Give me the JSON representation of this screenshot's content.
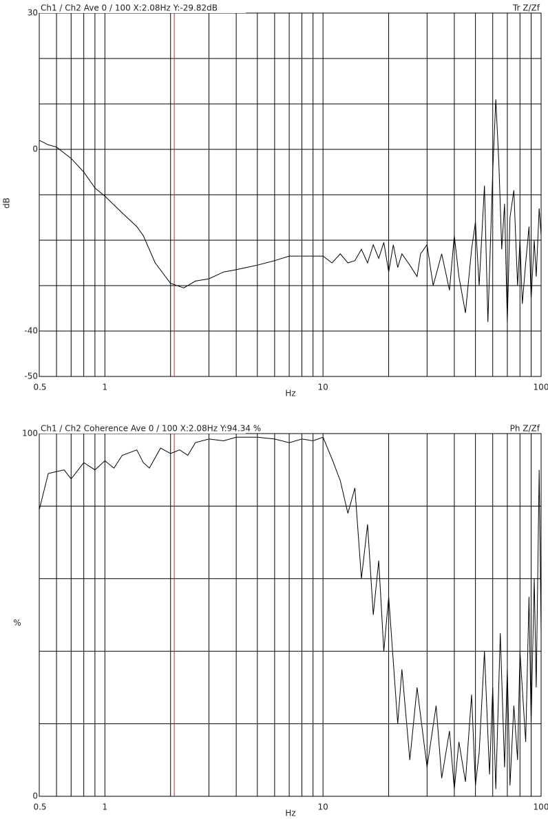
{
  "chart_data": [
    {
      "type": "line",
      "title": "Ch1 / Ch2  Ave 0 / 100  X:2.08Hz  Y:-29.82dB",
      "subtitle": "Tr Z/Zf",
      "x_label": "Hz",
      "y_label": "dB",
      "xscale": "log",
      "grid": true,
      "xlim": [
        0.5,
        100
      ],
      "xticks": [
        0.5,
        1,
        10,
        100
      ],
      "xgrid": [
        0.6,
        0.7,
        0.8,
        0.9,
        1,
        2,
        3,
        4,
        5,
        6,
        7,
        8,
        9,
        10,
        20,
        30,
        40,
        50,
        60,
        70,
        80,
        90
      ],
      "ylim": [
        -50,
        30
      ],
      "yticks": [
        30,
        0,
        -40,
        -50
      ],
      "ygrid": [
        20,
        10,
        0,
        -10,
        -20,
        -30,
        -40
      ],
      "cursor_x": 2.08,
      "cursor_color": "#d02020",
      "series": [
        {
          "color": "#000000",
          "x": [
            0.5,
            0.55,
            0.6,
            0.7,
            0.8,
            0.9,
            1,
            1.2,
            1.4,
            1.5,
            1.7,
            2,
            2.3,
            2.6,
            3,
            3.5,
            4,
            5,
            6,
            7,
            8,
            10,
            11,
            12,
            13,
            14,
            15,
            16,
            17,
            18,
            19,
            20,
            21,
            22,
            23,
            25,
            27,
            28,
            30,
            32,
            35,
            38,
            40,
            42,
            45,
            48,
            50,
            52,
            55,
            57,
            60,
            62,
            64,
            66,
            68,
            70,
            72,
            75,
            78,
            80,
            82,
            85,
            88,
            90,
            93,
            95,
            98,
            100
          ],
          "values": [
            2,
            1,
            0.5,
            -2,
            -5,
            -8.5,
            -10.3,
            -14,
            -17,
            -19,
            -25,
            -29.5,
            -30.5,
            -29,
            -28.5,
            -27,
            -26.5,
            -25.5,
            -24.5,
            -23.5,
            -23.5,
            -23.5,
            -25,
            -23,
            -25,
            -24.5,
            -22,
            -25,
            -21,
            -24,
            -20.5,
            -27,
            -21,
            -26,
            -23,
            -25.5,
            -28,
            -23,
            -21,
            -30,
            -23,
            -31,
            -19,
            -28,
            -36,
            -22,
            -16,
            -30,
            -8,
            -38,
            -5,
            11,
            -3,
            -22,
            -12,
            -38,
            -15,
            -9,
            -30,
            -20,
            -34,
            -25,
            -17,
            -33,
            -20,
            -28,
            -13,
            -19
          ]
        }
      ]
    },
    {
      "type": "line",
      "title": "Ch1 / Ch2  Coherence Ave 0 / 100  X:2.08Hz  Y:94.34 %",
      "subtitle": "Ph Z/Zf",
      "x_label": "Hz",
      "y_label": "%",
      "xscale": "log",
      "grid": true,
      "xlim": [
        0.5,
        100
      ],
      "xticks": [
        0.5,
        1,
        10,
        100
      ],
      "xgrid": [
        0.6,
        0.7,
        0.8,
        0.9,
        1,
        2,
        3,
        4,
        5,
        6,
        7,
        8,
        9,
        10,
        20,
        30,
        40,
        50,
        60,
        70,
        80,
        90
      ],
      "ylim": [
        0,
        100
      ],
      "yticks": [
        100,
        0
      ],
      "ygrid": [
        80,
        60,
        40,
        20
      ],
      "cursor_x": 2.08,
      "cursor_color": "#d02020",
      "series": [
        {
          "color": "#000000",
          "x": [
            0.5,
            0.55,
            0.6,
            0.65,
            0.7,
            0.8,
            0.9,
            1,
            1.1,
            1.2,
            1.4,
            1.5,
            1.6,
            1.8,
            2,
            2.2,
            2.4,
            2.6,
            3,
            3.5,
            4,
            5,
            6,
            7,
            8,
            9,
            10,
            11,
            12,
            13,
            14,
            15,
            16,
            17,
            18,
            19,
            20,
            22,
            23,
            25,
            27,
            30,
            33,
            35,
            38,
            40,
            42,
            45,
            48,
            50,
            52,
            55,
            58,
            60,
            62,
            65,
            68,
            70,
            72,
            75,
            78,
            80,
            85,
            88,
            90,
            93,
            95,
            98,
            100
          ],
          "values": [
            79,
            89,
            89.5,
            90,
            87.5,
            92,
            90,
            92.5,
            90.5,
            94,
            95.5,
            92,
            90.5,
            96,
            94.5,
            95.5,
            94,
            97.5,
            98.5,
            98,
            99,
            99,
            98.5,
            97.5,
            98.5,
            98,
            99,
            93,
            87,
            78,
            85,
            60,
            75,
            50,
            65,
            40,
            55,
            20,
            35,
            10,
            30,
            8,
            25,
            5,
            18,
            2,
            15,
            4,
            28,
            3,
            12,
            40,
            6,
            30,
            2,
            45,
            8,
            35,
            3,
            25,
            10,
            40,
            15,
            55,
            20,
            60,
            30,
            90,
            45
          ]
        }
      ]
    }
  ]
}
